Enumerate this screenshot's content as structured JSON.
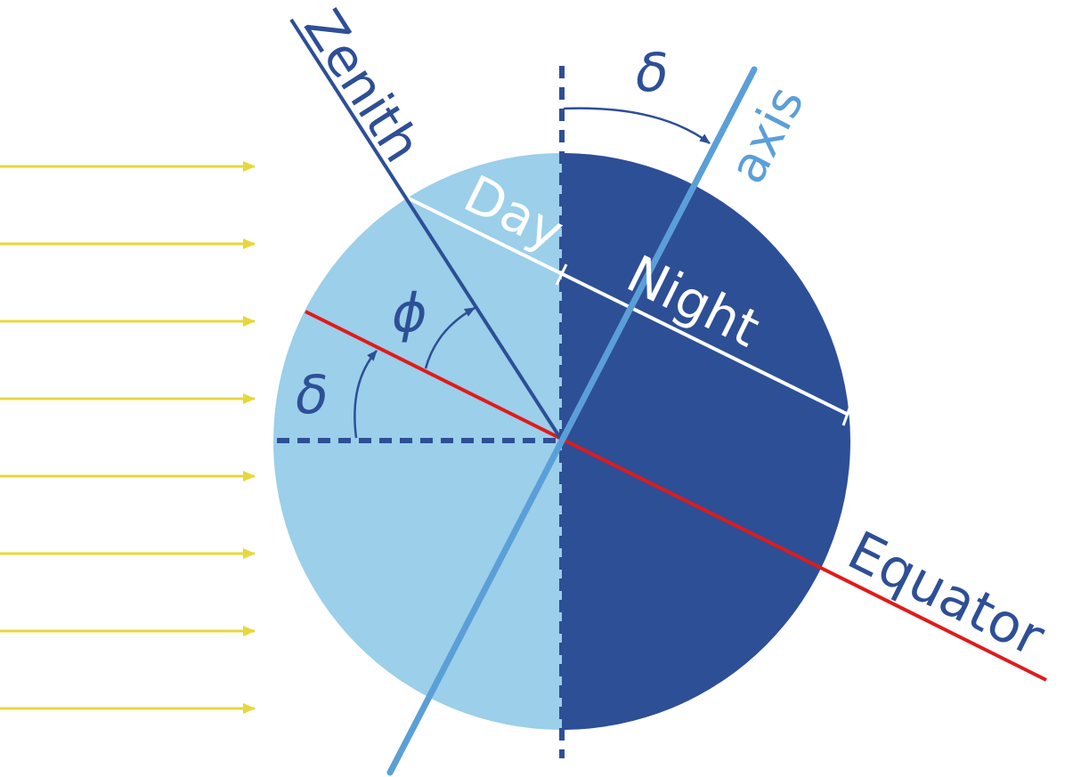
{
  "labels": {
    "zenith": "Zenith",
    "axis": "axis",
    "day": "Day",
    "night": "Night",
    "equator": "Equator",
    "phi": "ϕ",
    "delta_top": "δ",
    "delta_left": "δ"
  },
  "colors": {
    "day_side": "#9bcfea",
    "night_side": "#2d4f96",
    "axis": "#5b9fd8",
    "zenith": "#2d4f96",
    "equator": "#e01b1b",
    "terminator_line": "#ffffff",
    "sun_rays": "#e6d83a",
    "label_dark": "#2d4f96",
    "label_light": "#ffffff"
  },
  "sun_rays": {
    "count": 8,
    "direction": "left-to-right"
  }
}
